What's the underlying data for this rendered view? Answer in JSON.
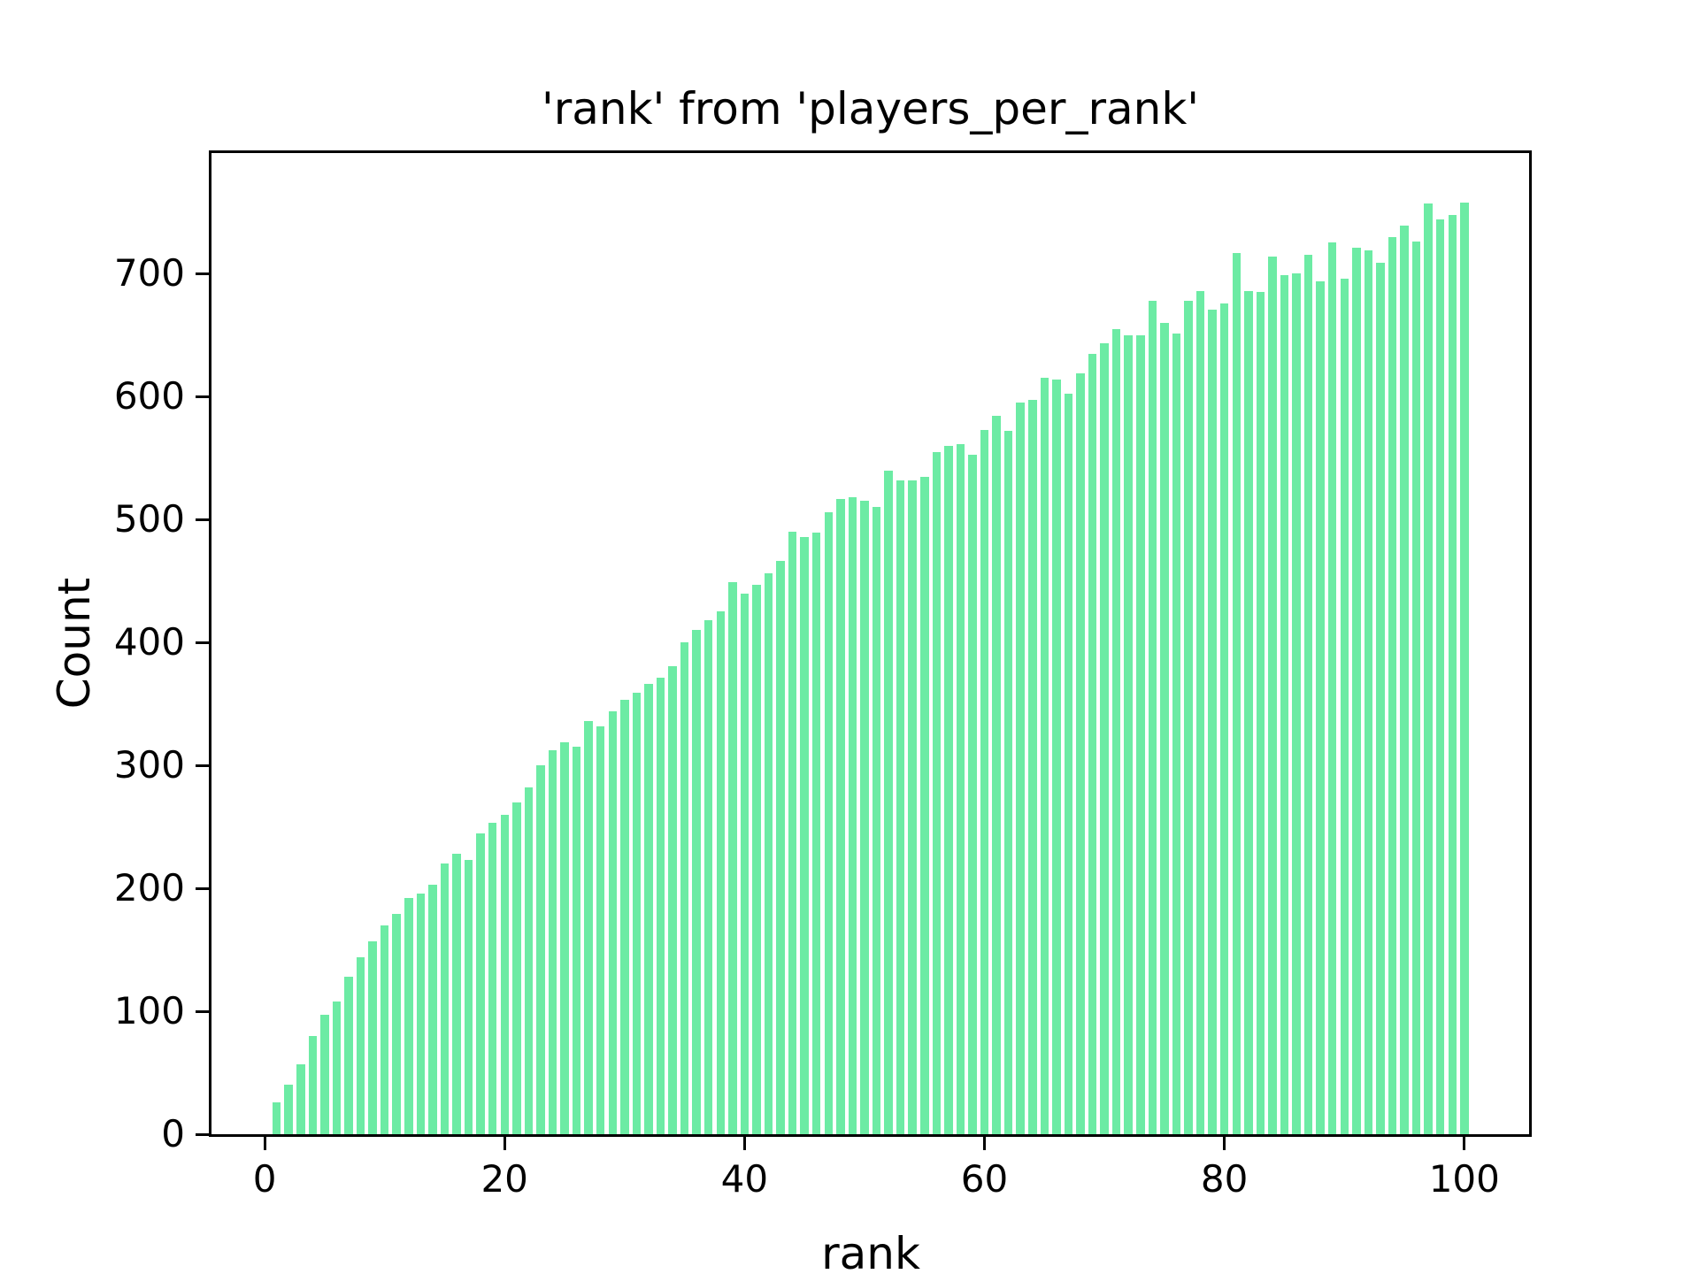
{
  "chart_data": {
    "type": "bar",
    "title": "'rank' from 'players_per_rank'",
    "xlabel": "rank",
    "ylabel": "Count",
    "bar_color": "#6ceba4",
    "background_color": "#ffffff",
    "grid": false,
    "legend_position": "none",
    "xlim": [
      -4.43,
      105.4
    ],
    "ylim": [
      0,
      798
    ],
    "xticks": [
      0,
      20,
      40,
      60,
      80,
      100
    ],
    "yticks": [
      0,
      100,
      200,
      300,
      400,
      500,
      600,
      700
    ],
    "x": [
      1,
      2,
      3,
      4,
      5,
      6,
      7,
      8,
      9,
      10,
      11,
      12,
      13,
      14,
      15,
      16,
      17,
      18,
      19,
      20,
      21,
      22,
      23,
      24,
      25,
      26,
      27,
      28,
      29,
      30,
      31,
      32,
      33,
      34,
      35,
      36,
      37,
      38,
      39,
      40,
      41,
      42,
      43,
      44,
      45,
      46,
      47,
      48,
      49,
      50,
      51,
      52,
      53,
      54,
      55,
      56,
      57,
      58,
      59,
      60,
      61,
      62,
      63,
      64,
      65,
      66,
      67,
      68,
      69,
      70,
      71,
      72,
      73,
      74,
      75,
      76,
      77,
      78,
      79,
      80,
      81,
      82,
      83,
      84,
      85,
      86,
      87,
      88,
      89,
      90,
      91,
      92,
      93,
      94,
      95,
      96,
      97,
      98,
      99,
      100
    ],
    "values": [
      26,
      40,
      57,
      80,
      97,
      108,
      128,
      144,
      157,
      170,
      179,
      192,
      196,
      203,
      220,
      228,
      223,
      245,
      253,
      260,
      270,
      282,
      300,
      312,
      319,
      315,
      336,
      332,
      344,
      353,
      359,
      366,
      371,
      381,
      400,
      410,
      418,
      425,
      449,
      440,
      447,
      456,
      466,
      490,
      486,
      489,
      506,
      517,
      518,
      515,
      510,
      540,
      532,
      532,
      535,
      555,
      560,
      561,
      553,
      573,
      584,
      572,
      595,
      597,
      615,
      614,
      602,
      619,
      635,
      643,
      655,
      650,
      650,
      678,
      660,
      651,
      678,
      686,
      671,
      676,
      717,
      686,
      685,
      714,
      699,
      700,
      715,
      694,
      725,
      696,
      721,
      719,
      709,
      730,
      739,
      726,
      757,
      744,
      748,
      758
    ]
  }
}
